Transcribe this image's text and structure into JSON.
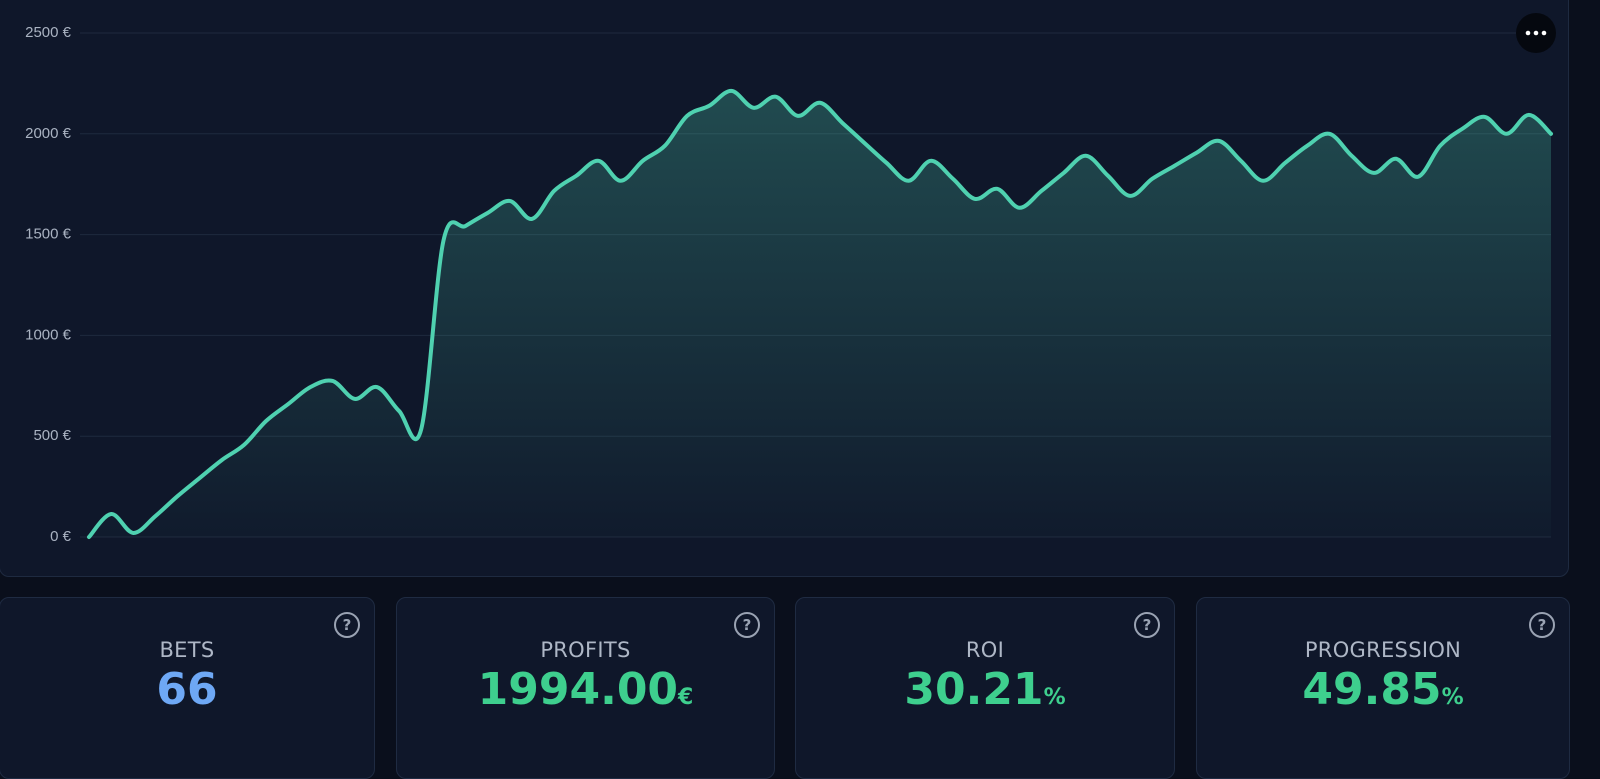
{
  "chart_data": {
    "type": "line",
    "categories": [
      null,
      null,
      null,
      null,
      null,
      null,
      null,
      null,
      null,
      null,
      null,
      null,
      null,
      null,
      null,
      null,
      null,
      null,
      null,
      null,
      null,
      null,
      null,
      null,
      null,
      null,
      null,
      null,
      null,
      null,
      null,
      null,
      null,
      null,
      null,
      null,
      null,
      null,
      null,
      null,
      null,
      null,
      null,
      null,
      null,
      null,
      null,
      null,
      null,
      null,
      null,
      null,
      null,
      null,
      null,
      null,
      null,
      null,
      null,
      null,
      null,
      null,
      null,
      null,
      null,
      null,
      null
    ],
    "values": [
      0,
      114,
      20,
      104,
      203,
      293,
      382,
      457,
      576,
      660,
      744,
      774,
      685,
      744,
      625,
      536,
      1469,
      1543,
      1608,
      1667,
      1578,
      1717,
      1792,
      1866,
      1767,
      1866,
      1941,
      2089,
      2139,
      2213,
      2129,
      2184,
      2089,
      2154,
      2055,
      1955,
      1856,
      1767,
      1866,
      1777,
      1677,
      1727,
      1633,
      1717,
      1806,
      1891,
      1792,
      1692,
      1777,
      1841,
      1906,
      1965,
      1866,
      1767,
      1856,
      1941,
      2000,
      1891,
      1806,
      1876,
      1787,
      1941,
      2025,
      2084,
      2000,
      2094,
      2000
    ],
    "color": "#4fd1b0",
    "ylim": [
      0,
      2500
    ],
    "yticks": [
      {
        "value": 0,
        "label": "0 €"
      },
      {
        "value": 500,
        "label": "500 €"
      },
      {
        "value": 1000,
        "label": "1000 €"
      },
      {
        "value": 1500,
        "label": "1500 €"
      },
      {
        "value": 2000,
        "label": "2000 €"
      },
      {
        "value": 2500,
        "label": "2500 €"
      }
    ],
    "grid": true
  },
  "stats": [
    {
      "label": "BETS",
      "value": "66",
      "color": "#6ea8f5"
    },
    {
      "label": "PROFITS",
      "value": "1994.00",
      "unit": "€",
      "color": "#3ecf8e"
    },
    {
      "label": "ROI",
      "value": "30.21",
      "unit": "%",
      "color": "#3ecf8e"
    },
    {
      "label": "PROGRESSION",
      "value": "49.85",
      "unit": "%",
      "color": "#3ecf8e"
    }
  ]
}
